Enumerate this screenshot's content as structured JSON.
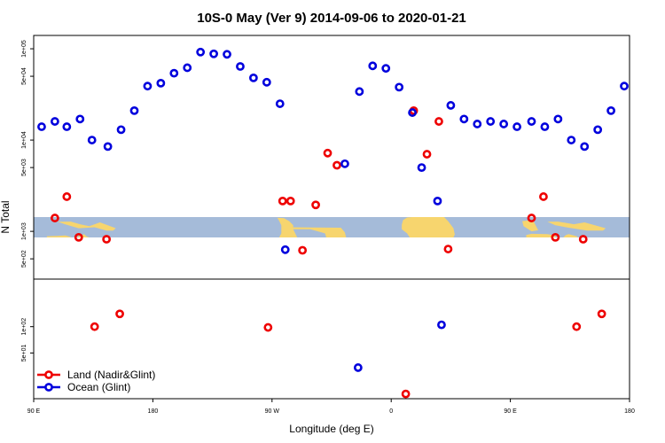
{
  "chart_data": {
    "type": "scatter",
    "title": "10S-0 May (Ver 9)   2014-09-06 to 2020-01-21",
    "xlabel": "Longitude (deg E)",
    "ylabel": "N Total",
    "x_ticks": [
      {
        "value": 90,
        "label": "90 E"
      },
      {
        "value": 180,
        "label": "180"
      },
      {
        "value": 270,
        "label": "90 W"
      },
      {
        "value": 360,
        "label": "0"
      },
      {
        "value": 450,
        "label": "90 E"
      },
      {
        "value": 540,
        "label": "180"
      }
    ],
    "xlim": [
      90,
      540
    ],
    "scale": "log",
    "upper_panel": {
      "ylim": [
        300,
        140000
      ],
      "y_ticks": [
        {
          "value": 500,
          "label": "5e+02"
        },
        {
          "value": 1000,
          "label": "1e+03"
        },
        {
          "value": 5000,
          "label": "5e+03"
        },
        {
          "value": 10000,
          "label": "1e+04"
        },
        {
          "value": 50000,
          "label": "5e+04"
        },
        {
          "value": 100000,
          "label": "1e+05"
        }
      ]
    },
    "lower_panel": {
      "ylim": [
        15,
        350
      ],
      "y_ticks": [
        {
          "value": 50,
          "label": "5e+01"
        },
        {
          "value": 100,
          "label": "1e+02"
        }
      ]
    },
    "legend": {
      "placement": "bottom-left",
      "entries": [
        {
          "label": "Land (Nadir&Glint)",
          "color": "#ee0000"
        },
        {
          "label": "Ocean (Glint)",
          "color": "#0000dd"
        }
      ]
    },
    "series": [
      {
        "name": "Land (Nadir&Glint)",
        "color": "#ee0000",
        "upper_points": [
          [
            106,
            1400
          ],
          [
            115,
            2400
          ],
          [
            124,
            860
          ],
          [
            145,
            820
          ],
          [
            278,
            2150
          ],
          [
            284,
            2150
          ],
          [
            293,
            620
          ],
          [
            303,
            1950
          ],
          [
            312,
            7200
          ],
          [
            319,
            5300
          ],
          [
            377,
            21000
          ],
          [
            387,
            7000
          ],
          [
            396,
            16000
          ],
          [
            403,
            640
          ],
          [
            466,
            1400
          ],
          [
            475,
            2400
          ],
          [
            484,
            860
          ],
          [
            505,
            820
          ]
        ],
        "lower_points": [
          [
            136,
            100
          ],
          [
            155,
            140
          ],
          [
            267,
            98
          ],
          [
            500,
            100
          ],
          [
            519,
            140
          ],
          [
            371,
            17
          ]
        ]
      },
      {
        "name": "Ocean (Glint)",
        "color": "#0000dd",
        "upper_points": [
          [
            96,
            14000
          ],
          [
            106,
            16000
          ],
          [
            115,
            14000
          ],
          [
            125,
            17000
          ],
          [
            134,
            10000
          ],
          [
            146,
            8500
          ],
          [
            156,
            13000
          ],
          [
            166,
            21000
          ],
          [
            176,
            39000
          ],
          [
            186,
            42000
          ],
          [
            196,
            54000
          ],
          [
            206,
            62000
          ],
          [
            216,
            92000
          ],
          [
            226,
            88000
          ],
          [
            236,
            87000
          ],
          [
            246,
            64000
          ],
          [
            256,
            48000
          ],
          [
            266,
            43000
          ],
          [
            276,
            25000
          ],
          [
            280,
            630
          ],
          [
            325,
            5500
          ],
          [
            336,
            34000
          ],
          [
            346,
            65000
          ],
          [
            356,
            61000
          ],
          [
            366,
            38000
          ],
          [
            376,
            20000
          ],
          [
            383,
            5000
          ],
          [
            395,
            2150
          ],
          [
            405,
            24000
          ],
          [
            415,
            17000
          ],
          [
            425,
            15000
          ],
          [
            435,
            16000
          ],
          [
            445,
            15000
          ],
          [
            455,
            14000
          ],
          [
            466,
            16000
          ],
          [
            476,
            14000
          ],
          [
            486,
            17000
          ],
          [
            496,
            10000
          ],
          [
            506,
            8500
          ],
          [
            516,
            13000
          ],
          [
            526,
            21000
          ],
          [
            536,
            39000
          ]
        ],
        "lower_points": [
          [
            335,
            34
          ],
          [
            398,
            105
          ]
        ]
      }
    ]
  },
  "map_background": {
    "ocean_color": "#a5bbd9",
    "land_color": "#f7d56e",
    "land_regions": [
      [
        [
          100,
          -9.4
        ],
        [
          108,
          -9.2
        ],
        [
          114,
          -9.0
        ],
        [
          118,
          -9.8
        ],
        [
          118,
          -10
        ],
        [
          100,
          -10
        ]
      ],
      [
        [
          108,
          -2.3
        ],
        [
          118,
          -2.2
        ],
        [
          125,
          -3.5
        ],
        [
          132,
          -4.5
        ],
        [
          140,
          -2.6
        ],
        [
          152,
          -5.5
        ],
        [
          150,
          -6.6
        ],
        [
          145,
          -6.6
        ],
        [
          136,
          -5.0
        ],
        [
          124,
          -5.5
        ],
        [
          114,
          -3.6
        ]
      ],
      [
        [
          127,
          -8.8
        ],
        [
          128,
          -8.3
        ],
        [
          130,
          -9.5
        ],
        [
          132,
          -10
        ],
        [
          124,
          -10
        ],
        [
          123,
          -9.5
        ]
      ],
      [
        [
          142,
          -10
        ],
        [
          142,
          -10
        ]
      ],
      [
        [
          274,
          -0.3
        ],
        [
          279,
          -0.5
        ],
        [
          283,
          -2.0
        ],
        [
          286,
          -4.0
        ],
        [
          286,
          -6.0
        ],
        [
          289,
          -10
        ],
        [
          275.4,
          -10
        ],
        [
          277,
          -8.0
        ],
        [
          277,
          -4.0
        ],
        [
          275.5,
          -2.0
        ]
      ],
      [
        [
          282,
          -5.0
        ],
        [
          322,
          -5.2
        ],
        [
          325,
          -7.5
        ],
        [
          326,
          -10
        ],
        [
          311,
          -10
        ],
        [
          310,
          -8.0
        ],
        [
          299,
          -6.0
        ],
        [
          284,
          -6.0
        ]
      ],
      [
        [
          369,
          -1.5
        ],
        [
          372,
          -0.2
        ],
        [
          376,
          0
        ],
        [
          400,
          0
        ],
        [
          403,
          -2.0
        ],
        [
          407,
          -5.5
        ],
        [
          408,
          -8.5
        ],
        [
          407,
          -10
        ],
        [
          374,
          -10
        ],
        [
          372,
          -8.0
        ],
        [
          368,
          -6.0
        ],
        [
          368,
          -3.8
        ]
      ],
      [
        [
          459,
          -2.0
        ],
        [
          467,
          -1.5
        ],
        [
          471,
          -6.5
        ],
        [
          466,
          -7.0
        ],
        [
          460,
          -4.5
        ]
      ],
      [
        [
          462,
          -8.8
        ],
        [
          466,
          -8.2
        ],
        [
          478,
          -8.4
        ],
        [
          484,
          -9.0
        ],
        [
          484,
          -10
        ],
        [
          462,
          -10
        ]
      ],
      [
        [
          478,
          -2.3
        ],
        [
          486,
          -2.2
        ],
        [
          498,
          -3.5
        ],
        [
          506,
          -2.6
        ],
        [
          522,
          -5.5
        ],
        [
          520,
          -6.6
        ],
        [
          508,
          -6.6
        ],
        [
          494,
          -5.2
        ],
        [
          484,
          -4.0
        ]
      ],
      [
        [
          492,
          -8.8
        ],
        [
          494,
          -8.4
        ],
        [
          500,
          -9.4
        ],
        [
          501,
          -10
        ],
        [
          490,
          -10
        ]
      ]
    ]
  }
}
